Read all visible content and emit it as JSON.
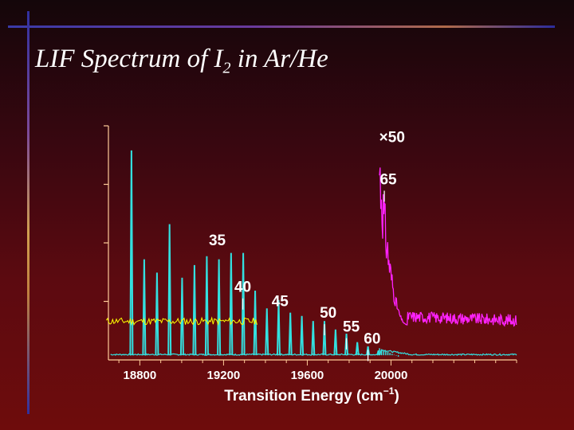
{
  "slide": {
    "title_pre": "LIF Spectrum of I",
    "title_sub": "2",
    "title_post": " in Ar/He"
  },
  "chart_data": {
    "type": "line",
    "title": "",
    "xlabel": "Transition Energy (cm",
    "xlabel_sup": "−1",
    "xlabel_close": ")",
    "ylabel": "",
    "xlim": [
      18650,
      20600
    ],
    "ylim": [
      0,
      1
    ],
    "grid": false,
    "xticks": [
      18800,
      19200,
      19600,
      20000
    ],
    "xtick_labels": [
      "18800",
      "19200",
      "19600",
      "20000"
    ],
    "yticks": [
      0.25,
      0.5,
      0.75,
      1.0
    ],
    "colors": {
      "main": "#33e0e0",
      "magnified": "#ff22ff",
      "inset": "#ffff00",
      "axes": "#ffcc99",
      "text": "#ffffff"
    },
    "series": [
      {
        "name": "",
        "role": "main",
        "baseline": 0.02,
        "peaks": [
          {
            "x": 18760,
            "y": 0.895
          },
          {
            "x": 18821,
            "y": 0.43
          },
          {
            "x": 18882,
            "y": 0.373
          },
          {
            "x": 18942,
            "y": 0.58
          },
          {
            "x": 19002,
            "y": 0.351
          },
          {
            "x": 19061,
            "y": 0.405
          },
          {
            "x": 19120,
            "y": 0.443
          },
          {
            "x": 19178,
            "y": 0.43
          },
          {
            "x": 19236,
            "y": 0.457
          },
          {
            "x": 19294,
            "y": 0.457
          },
          {
            "x": 19351,
            "y": 0.296
          },
          {
            "x": 19407,
            "y": 0.22
          },
          {
            "x": 19463,
            "y": 0.256
          },
          {
            "x": 19519,
            "y": 0.202
          },
          {
            "x": 19574,
            "y": 0.188
          },
          {
            "x": 19628,
            "y": 0.166
          },
          {
            "x": 19682,
            "y": 0.166
          },
          {
            "x": 19735,
            "y": 0.13
          },
          {
            "x": 19787,
            "y": 0.112
          },
          {
            "x": 19839,
            "y": 0.076
          },
          {
            "x": 19890,
            "y": 0.058
          },
          {
            "x": 19940,
            "y": 0.04
          }
        ]
      },
      {
        "name": "×50",
        "role": "magnified",
        "baseline": 0.15,
        "x_start": 19945,
        "x_end": 20600,
        "band_peak_x": 19945,
        "band_peak_y": 1.0,
        "decay_to_x": 20080
      }
    ],
    "annotations": [
      {
        "text": "35",
        "x": 19170,
        "y": 0.49,
        "tick_x": null
      },
      {
        "text": "40",
        "x": 19292,
        "y": 0.29,
        "tick_x": 19292
      },
      {
        "text": "45",
        "x": 19470,
        "y": 0.23,
        "tick_x": null
      },
      {
        "text": "50",
        "x": 19700,
        "y": 0.18,
        "tick_x": 19682
      },
      {
        "text": "55",
        "x": 19810,
        "y": 0.12,
        "tick_x": 19787
      },
      {
        "text": "60",
        "x": 19910,
        "y": 0.07,
        "tick_x": 19890
      },
      {
        "text": "65",
        "x": 19987,
        "y": 0.75,
        "tick_x": 19968
      },
      {
        "text": "×50",
        "x": 20005,
        "y": 0.93,
        "tick_x": null
      }
    ],
    "inset": {
      "description_free": true,
      "x_start": 18640,
      "x_end": 19360,
      "y_level": 0.165
    }
  }
}
